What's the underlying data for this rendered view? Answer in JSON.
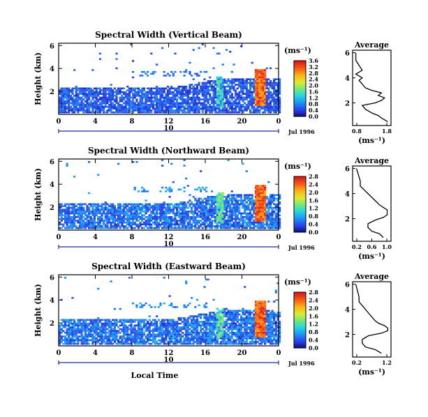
{
  "chart_data": [
    {
      "type": "heatmap",
      "title": "Spectral Width (Vertical Beam)",
      "ylabel": "Height (km)",
      "yticks": [
        "2",
        "4",
        "6"
      ],
      "xticks": [
        "0",
        "4",
        "8",
        "12",
        "16",
        "20",
        "0"
      ],
      "date_marker": "10",
      "date_label": "Jul 1996",
      "colorbar": {
        "unit": "(ms⁻¹)",
        "ticks": [
          "0.0",
          "0.4",
          "0.8",
          "1.2",
          "1.6",
          "2.0",
          "2.4",
          "2.8",
          "3.2",
          "3.6"
        ]
      },
      "average": {
        "title": "Average",
        "xlabel": "(ms⁻¹)",
        "xticks": [
          "0.8",
          "1.8"
        ],
        "yticks": [
          "2",
          "4",
          "6"
        ]
      },
      "structure": {
        "low_layer": {
          "top_km": 2.2,
          "typical_ms": 0.5
        },
        "scattered_echoes_km": [
          3.4,
          5.7
        ],
        "strong_band": {
          "hours": [
            21.3,
            22.4
          ],
          "peak_ms": 3.6
        },
        "secondary_band": {
          "hours": [
            17.0,
            17.8
          ],
          "peak_ms": 1.8
        }
      },
      "profile_km": [
        0.5,
        0.8,
        1.0,
        1.2,
        1.5,
        1.8,
        2.0,
        2.2,
        2.4,
        2.6,
        2.8,
        3.0,
        3.2,
        3.5,
        3.8,
        4.0,
        4.3,
        4.6,
        5.0,
        5.4,
        6.0
      ],
      "profile_ms": [
        1.7,
        1.5,
        1.4,
        1.2,
        1.0,
        0.9,
        1.3,
        1.5,
        1.6,
        1.4,
        1.5,
        1.2,
        1.0,
        0.9,
        0.8,
        0.9,
        0.7,
        0.9,
        0.8,
        0.7,
        0.7
      ]
    },
    {
      "type": "heatmap",
      "title": "Spectral Width (Northward Beam)",
      "ylabel": "Height (km)",
      "yticks": [
        "2",
        "4",
        "6"
      ],
      "xticks": [
        "0",
        "4",
        "8",
        "12",
        "16",
        "20",
        "0"
      ],
      "date_marker": "10",
      "date_label": "Jul 1996",
      "colorbar": {
        "unit": "(ms⁻¹)",
        "ticks": [
          "0.0",
          "0.4",
          "0.8",
          "1.2",
          "1.6",
          "2.0",
          "2.4",
          "2.8"
        ]
      },
      "average": {
        "title": "Average",
        "xlabel": "(ms⁻¹)",
        "xticks": [
          "0.2",
          "0.6",
          "1.0"
        ],
        "yticks": [
          "2",
          "4",
          "6"
        ]
      },
      "structure": {
        "low_layer": {
          "top_km": 2.2,
          "typical_ms": 0.5
        },
        "scattered_echoes_km": [
          3.4,
          5.7
        ],
        "strong_band": {
          "hours": [
            21.3,
            22.4
          ],
          "peak_ms": 2.8
        },
        "secondary_band": {
          "hours": [
            17.0,
            17.8
          ],
          "peak_ms": 1.6
        }
      },
      "profile_km": [
        0.5,
        0.8,
        1.0,
        1.3,
        1.6,
        1.9,
        2.1,
        2.3,
        2.5,
        2.7,
        2.9,
        3.1,
        3.4,
        3.7,
        4.0,
        4.3,
        4.6,
        5.0,
        5.5,
        6.0
      ],
      "profile_ms": [
        0.9,
        0.8,
        0.6,
        0.5,
        0.5,
        0.7,
        0.9,
        1.0,
        1.0,
        1.0,
        0.9,
        0.8,
        0.7,
        0.6,
        0.5,
        0.4,
        0.3,
        0.3,
        0.25,
        0.2
      ]
    },
    {
      "type": "heatmap",
      "title": "Spectral Width (Eastward Beam)",
      "ylabel": "Height (km)",
      "yticks": [
        "2",
        "4",
        "6"
      ],
      "xticks": [
        "0",
        "4",
        "8",
        "12",
        "16",
        "20",
        "0"
      ],
      "date_marker": "10",
      "date_label": "Jul 1996",
      "xlabel": "Local Time",
      "colorbar": {
        "unit": "(ms⁻¹)",
        "ticks": [
          "0.0",
          "0.4",
          "0.8",
          "1.2",
          "1.6",
          "2.0",
          "2.4",
          "2.8"
        ]
      },
      "average": {
        "title": "Average",
        "xlabel": "(ms⁻¹)",
        "xticks": [
          "0.2",
          "1.2"
        ],
        "yticks": [
          "2",
          "4",
          "6"
        ]
      },
      "structure": {
        "low_layer": {
          "top_km": 2.2,
          "typical_ms": 0.5
        },
        "scattered_echoes_km": [
          3.4,
          5.7
        ],
        "strong_band": {
          "hours": [
            21.3,
            22.4
          ],
          "peak_ms": 2.8
        },
        "secondary_band": {
          "hours": [
            17.0,
            17.8
          ],
          "peak_ms": 1.6
        }
      },
      "profile_km": [
        0.5,
        0.8,
        1.0,
        1.3,
        1.6,
        1.9,
        2.1,
        2.3,
        2.5,
        2.7,
        2.9,
        3.1,
        3.4,
        3.7,
        4.0,
        4.3,
        4.6,
        5.0,
        5.5,
        6.0
      ],
      "profile_ms": [
        1.0,
        0.8,
        0.5,
        0.4,
        0.4,
        0.6,
        1.0,
        1.2,
        1.2,
        1.1,
        0.9,
        0.8,
        0.7,
        0.6,
        0.5,
        0.4,
        0.3,
        0.3,
        0.25,
        0.2
      ]
    }
  ]
}
